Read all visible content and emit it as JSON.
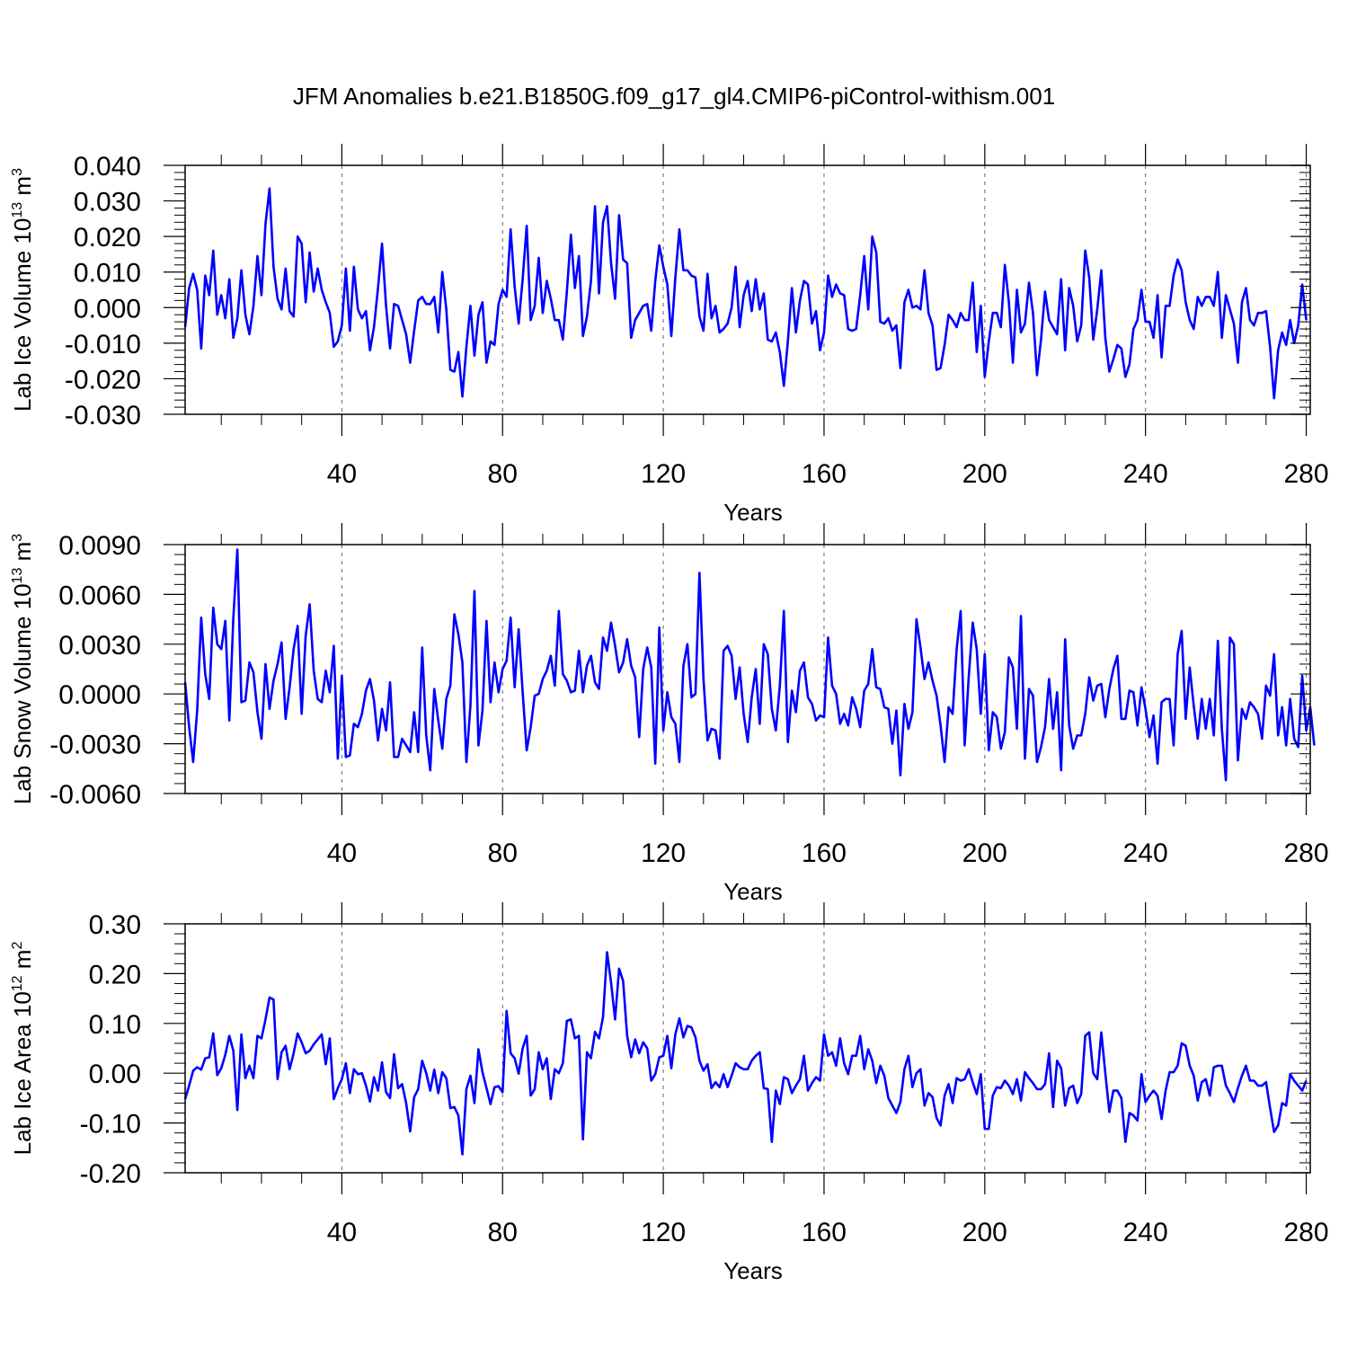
{
  "figure_title": "JFM Anomalies b.e21.B1850G.f09_g17_gl4.CMIP6-piControl-withism.001",
  "colors": {
    "series": "#0000ff",
    "axes": "#000000",
    "gridline": "#000000"
  },
  "chart_data": [
    {
      "type": "line",
      "title": "",
      "ylabel": {
        "main": "Lab Ice Volume 10",
        "sup": "13",
        "unit": " m",
        "unit_sup": "3"
      },
      "xlabel": "Years",
      "xlim": [
        1,
        281
      ],
      "ylim": [
        -0.03,
        0.04
      ],
      "xticks": [
        40,
        80,
        120,
        160,
        200,
        240,
        280
      ],
      "yticks": [
        -0.03,
        -0.02,
        -0.01,
        0.0,
        0.01,
        0.02,
        0.03,
        0.04
      ],
      "yticklabels": [
        "-0.030",
        "-0.020",
        "-0.010",
        "0.000",
        "0.010",
        "0.020",
        "0.030",
        "0.040"
      ],
      "grid": "vertical-dashed",
      "x_start": 1,
      "series": [
        {
          "name": "Lab Ice Volume",
          "values": [
            -0.0055,
            0.0055,
            0.0095,
            0.005,
            -0.0115,
            0.009,
            0.0035,
            0.016,
            -0.002,
            0.0035,
            -0.003,
            0.008,
            -0.0085,
            -0.003,
            0.0105,
            -0.002,
            -0.0075,
            0.0005,
            0.0145,
            0.0035,
            0.0235,
            0.0335,
            0.0115,
            0.0025,
            -0.0005,
            0.011,
            -0.001,
            -0.0025,
            0.02,
            0.018,
            0.0015,
            0.0155,
            0.0045,
            0.011,
            0.005,
            0.0015,
            -0.0015,
            -0.011,
            -0.0095,
            -0.005,
            0.011,
            -0.0065,
            0.0115,
            -0.0005,
            -0.003,
            -0.001,
            -0.012,
            -0.0055,
            0.0055,
            0.018,
            0.0005,
            -0.0115,
            0.001,
            0.0005,
            -0.0035,
            -0.0075,
            -0.0155,
            -0.0065,
            0.002,
            0.003,
            0.001,
            0.001,
            0.003,
            -0.007,
            0.01,
            -0.0005,
            -0.0175,
            -0.018,
            -0.0125,
            -0.025,
            -0.011,
            0.0005,
            -0.0135,
            -0.002,
            0.0015,
            -0.0155,
            -0.0095,
            -0.0105,
            0.001,
            0.005,
            0.003,
            0.022,
            0.006,
            -0.0045,
            0.008,
            0.023,
            -0.0035,
            0.0005,
            0.014,
            -0.0015,
            0.0075,
            0.0025,
            -0.0035,
            -0.0035,
            -0.009,
            0.0045,
            0.0205,
            0.0055,
            0.0145,
            -0.008,
            -0.0025,
            0.0075,
            0.0285,
            0.004,
            0.024,
            0.0285,
            0.0125,
            0.0025,
            0.026,
            0.0135,
            0.0125,
            -0.0085,
            -0.0035,
            -0.0015,
            0.0005,
            0.001,
            -0.0065,
            0.0075,
            0.0175,
            0.0115,
            0.0065,
            -0.008,
            0.0085,
            0.022,
            0.0105,
            0.0105,
            0.009,
            0.0085,
            -0.0025,
            -0.0065,
            0.0095,
            -0.003,
            0.0005,
            -0.007,
            -0.006,
            -0.0045,
            0.0,
            0.0115,
            -0.0055,
            0.0035,
            0.0075,
            -0.001,
            0.008,
            -0.0005,
            0.004,
            -0.009,
            -0.0095,
            -0.007,
            -0.0125,
            -0.022,
            -0.0095,
            0.0055,
            -0.007,
            0.002,
            0.0075,
            0.0065,
            -0.0045,
            -0.001,
            -0.012,
            -0.007,
            0.009,
            0.003,
            0.0065,
            0.004,
            0.0035,
            -0.006,
            -0.0065,
            -0.006,
            0.0035,
            0.0145,
            -0.0005,
            0.02,
            0.0155,
            -0.004,
            -0.0045,
            -0.003,
            -0.0065,
            -0.005,
            -0.017,
            0.0015,
            0.005,
            0.0,
            0.0005,
            -0.0005,
            0.0105,
            -0.0015,
            -0.005,
            -0.0175,
            -0.017,
            -0.0105,
            -0.002,
            -0.0035,
            -0.0055,
            -0.0015,
            -0.0035,
            -0.0035,
            0.007,
            -0.0125,
            0.0005,
            -0.0195,
            -0.0095,
            -0.0015,
            -0.0015,
            -0.0055,
            0.012,
            0.0015,
            -0.0155,
            0.005,
            -0.007,
            -0.0045,
            0.007,
            -0.0015,
            -0.019,
            -0.009,
            0.0045,
            -0.0035,
            -0.0055,
            -0.0075,
            0.008,
            -0.012,
            0.0055,
            0.0005,
            -0.0095,
            -0.005,
            0.016,
            0.0085,
            -0.009,
            -0.0005,
            0.0105,
            -0.0085,
            -0.018,
            -0.0145,
            -0.0105,
            -0.0115,
            -0.0195,
            -0.016,
            -0.006,
            -0.0035,
            0.005,
            -0.004,
            -0.004,
            -0.0085,
            0.0035,
            -0.014,
            0.0005,
            0.0005,
            0.009,
            0.0135,
            0.0105,
            0.0015,
            -0.0035,
            -0.006,
            0.003,
            0.0005,
            0.003,
            0.003,
            0.0005,
            0.01,
            -0.0085,
            0.0035,
            -0.0005,
            -0.0045,
            -0.0155,
            0.0015,
            0.0055,
            -0.0035,
            -0.005,
            -0.0015,
            -0.0015,
            -0.001,
            -0.011,
            -0.0255,
            -0.012,
            -0.007,
            -0.0105,
            -0.0035,
            -0.01,
            -0.005,
            0.0065,
            -0.0035
          ]
        }
      ]
    },
    {
      "type": "line",
      "title": "",
      "ylabel": {
        "main": "Lab Snow Volume 10",
        "sup": "13",
        "unit": " m",
        "unit_sup": "3"
      },
      "xlabel": "Years",
      "xlim": [
        1,
        281
      ],
      "ylim": [
        -0.006,
        0.009
      ],
      "xticks": [
        40,
        80,
        120,
        160,
        200,
        240,
        280
      ],
      "yticks": [
        -0.006,
        -0.003,
        0.0,
        0.003,
        0.006,
        0.009
      ],
      "yticklabels": [
        "-0.0060",
        "-0.0030",
        "0.0000",
        "0.0030",
        "0.0060",
        "0.0090"
      ],
      "grid": "vertical-dashed",
      "x_start": 1,
      "series": [
        {
          "name": "Lab Snow Volume",
          "values": [
            0.0007,
            -0.002,
            -0.0041,
            -0.001,
            0.0046,
            0.0012,
            -0.0003,
            0.0052,
            0.003,
            0.0027,
            0.0044,
            -0.0016,
            0.0046,
            0.0087,
            -0.0005,
            -0.0004,
            0.0019,
            0.0013,
            -0.0011,
            -0.0027,
            0.0018,
            -0.0009,
            0.0008,
            0.0018,
            0.0031,
            -0.0015,
            0.0004,
            0.0027,
            0.0041,
            -0.0012,
            0.0035,
            0.0054,
            0.0014,
            -0.0003,
            -0.0005,
            0.0014,
            0.0001,
            0.0029,
            -0.0039,
            0.0011,
            -0.0038,
            -0.0037,
            -0.0018,
            -0.002,
            -0.0012,
            0.0002,
            0.0009,
            -0.0004,
            -0.0028,
            -0.0009,
            -0.0022,
            0.0007,
            -0.0038,
            -0.0038,
            -0.0027,
            -0.0031,
            -0.0035,
            -0.0011,
            -0.0035,
            0.0028,
            -0.0025,
            -0.0046,
            0.0003,
            -0.0016,
            -0.0033,
            -0.0003,
            0.0005,
            0.0048,
            0.0036,
            0.0019,
            -0.0041,
            -0.0007,
            0.0062,
            -0.0031,
            -0.001,
            0.0044,
            -0.0005,
            0.0019,
            0.0001,
            0.0015,
            0.002,
            0.0046,
            0.0004,
            0.0039,
            0.0001,
            -0.0034,
            -0.002,
            -0.0001,
            0.0,
            0.0009,
            0.0014,
            0.0023,
            0.0005,
            0.005,
            0.0012,
            0.0008,
            0.0001,
            0.0002,
            0.0026,
            0.0001,
            0.0017,
            0.0023,
            0.0007,
            0.0003,
            0.0034,
            0.0026,
            0.0043,
            0.0029,
            0.0013,
            0.0019,
            0.0033,
            0.0017,
            0.001,
            -0.0026,
            0.0015,
            0.0028,
            0.0016,
            -0.0042,
            0.004,
            -0.0022,
            0.0001,
            -0.0014,
            -0.0018,
            -0.0041,
            0.0017,
            0.003,
            -0.0002,
            0.0,
            0.0073,
            0.0009,
            -0.0028,
            -0.0021,
            -0.0022,
            -0.0039,
            0.0026,
            0.0029,
            0.0023,
            -0.0003,
            0.0016,
            -0.0012,
            -0.0029,
            -0.0002,
            0.0015,
            -0.0018,
            0.003,
            0.0024,
            -0.0009,
            -0.0022,
            0.0005,
            0.005,
            -0.0029,
            0.0002,
            -0.0011,
            0.0014,
            0.0019,
            -0.0002,
            -0.0006,
            -0.0016,
            -0.0013,
            -0.0014,
            0.0034,
            0.0005,
            0.0,
            -0.0018,
            -0.0012,
            -0.0019,
            -0.0002,
            -0.0009,
            -0.002,
            0.0002,
            0.0006,
            0.0027,
            0.0004,
            0.0003,
            -0.0008,
            -0.0009,
            -0.003,
            -0.001,
            -0.0049,
            -0.0006,
            -0.0021,
            -0.0011,
            0.0045,
            0.0028,
            0.0009,
            0.0019,
            0.0008,
            -0.0001,
            -0.0019,
            -0.0041,
            -0.0008,
            -0.0012,
            0.0027,
            0.005,
            -0.0031,
            0.001,
            0.0043,
            0.0027,
            -0.0012,
            0.0024,
            -0.0034,
            -0.0011,
            -0.0014,
            -0.0033,
            -0.0023,
            0.0022,
            0.0016,
            -0.0021,
            0.0047,
            -0.0039,
            0.0003,
            -0.0001,
            -0.0041,
            -0.0032,
            -0.002,
            0.0009,
            -0.0021,
            0.0001,
            -0.0046,
            0.0033,
            -0.0019,
            -0.0033,
            -0.0025,
            -0.0025,
            -0.0012,
            0.001,
            -0.0004,
            0.0005,
            0.0006,
            -0.0014,
            0.0003,
            0.0015,
            0.0023,
            -0.0015,
            -0.0015,
            0.0002,
            0.0001,
            -0.0019,
            0.0004,
            -0.0009,
            -0.0026,
            -0.0013,
            -0.0042,
            -0.0005,
            -0.0003,
            -0.0003,
            -0.0031,
            0.0024,
            0.0038,
            -0.0015,
            0.0016,
            -0.0007,
            -0.0027,
            -0.0003,
            -0.0021,
            -0.0003,
            -0.0025,
            0.0032,
            -0.0021,
            -0.0052,
            0.0034,
            0.003,
            -0.004,
            -0.0009,
            -0.0015,
            -0.0005,
            -0.0008,
            -0.0012,
            -0.0027,
            0.0005,
            -0.0001,
            0.0024,
            -0.0025,
            -0.0008,
            -0.0031,
            -0.0003,
            -0.0027,
            -0.0032,
            0.0011,
            -0.0022,
            -0.0008,
            -0.0031
          ]
        }
      ]
    },
    {
      "type": "line",
      "title": "",
      "ylabel": {
        "main": "Lab Ice Area 10",
        "sup": "12",
        "unit": " m",
        "unit_sup": "2"
      },
      "xlabel": "Years",
      "xlim": [
        1,
        281
      ],
      "ylim": [
        -0.2,
        0.3
      ],
      "xticks": [
        40,
        80,
        120,
        160,
        200,
        240,
        280
      ],
      "yticks": [
        -0.2,
        -0.1,
        0.0,
        0.1,
        0.2,
        0.3
      ],
      "yticklabels": [
        "-0.20",
        "-0.10",
        "0.00",
        "0.10",
        "0.20",
        "0.30"
      ],
      "grid": "vertical-dashed",
      "x_start": 1,
      "series": [
        {
          "name": "Lab Ice Area",
          "values": [
            -0.052,
            -0.025,
            0.005,
            0.012,
            0.007,
            0.03,
            0.032,
            0.08,
            -0.004,
            0.01,
            0.037,
            0.075,
            0.045,
            -0.074,
            0.078,
            -0.01,
            0.015,
            -0.01,
            0.075,
            0.07,
            0.108,
            0.152,
            0.148,
            -0.012,
            0.042,
            0.055,
            0.008,
            0.04,
            0.08,
            0.062,
            0.04,
            0.045,
            0.058,
            0.068,
            0.078,
            0.018,
            0.07,
            -0.052,
            -0.03,
            -0.012,
            0.02,
            -0.04,
            0.008,
            -0.002,
            0.0,
            -0.025,
            -0.057,
            -0.008,
            -0.035,
            0.022,
            -0.038,
            -0.05,
            0.038,
            -0.03,
            -0.022,
            -0.06,
            -0.117,
            -0.048,
            -0.032,
            0.025,
            0.0,
            -0.035,
            0.007,
            -0.04,
            0.002,
            -0.01,
            -0.07,
            -0.068,
            -0.085,
            -0.163,
            -0.032,
            -0.005,
            -0.06,
            0.048,
            0.002,
            -0.03,
            -0.062,
            -0.028,
            -0.026,
            -0.038,
            0.125,
            0.04,
            0.03,
            -0.001,
            0.05,
            0.075,
            -0.045,
            -0.032,
            0.042,
            0.008,
            0.03,
            -0.052,
            0.008,
            0.0,
            0.02,
            0.105,
            0.108,
            0.07,
            0.075,
            -0.133,
            0.042,
            0.03,
            0.083,
            0.07,
            0.113,
            0.243,
            0.182,
            0.108,
            0.21,
            0.185,
            0.075,
            0.032,
            0.068,
            0.04,
            0.062,
            0.05,
            -0.015,
            -0.002,
            0.032,
            0.035,
            0.075,
            0.01,
            0.078,
            0.11,
            0.072,
            0.095,
            0.092,
            0.072,
            0.025,
            0.005,
            0.018,
            -0.03,
            -0.018,
            -0.028,
            -0.002,
            -0.028,
            -0.005,
            0.02,
            0.012,
            0.008,
            0.008,
            0.025,
            0.035,
            0.042,
            -0.03,
            -0.032,
            -0.138,
            -0.035,
            -0.062,
            -0.008,
            -0.012,
            -0.04,
            -0.025,
            -0.012,
            0.035,
            -0.035,
            -0.02,
            -0.008,
            -0.015,
            0.078,
            0.035,
            0.042,
            0.015,
            0.07,
            0.02,
            -0.002,
            0.035,
            0.035,
            0.075,
            0.008,
            0.048,
            0.025,
            -0.02,
            0.015,
            -0.005,
            -0.05,
            -0.065,
            -0.08,
            -0.058,
            0.008,
            0.035,
            -0.028,
            0.0,
            0.008,
            -0.065,
            -0.04,
            -0.048,
            -0.09,
            -0.105,
            -0.045,
            -0.022,
            -0.06,
            -0.01,
            -0.015,
            -0.012,
            0.008,
            -0.018,
            -0.042,
            -0.002,
            -0.112,
            -0.112,
            -0.045,
            -0.028,
            -0.03,
            -0.015,
            -0.025,
            -0.042,
            -0.012,
            -0.055,
            0.002,
            -0.01,
            -0.02,
            -0.032,
            -0.032,
            -0.022,
            0.04,
            -0.068,
            0.025,
            0.01,
            -0.065,
            -0.03,
            -0.025,
            -0.06,
            -0.042,
            0.075,
            0.082,
            0.0,
            -0.012,
            0.082,
            0.0,
            -0.078,
            -0.035,
            -0.035,
            -0.05,
            -0.138,
            -0.08,
            -0.085,
            -0.095,
            -0.002,
            -0.058,
            -0.045,
            -0.035,
            -0.045,
            -0.092,
            -0.035,
            0.002,
            0.002,
            0.015,
            0.06,
            0.055,
            0.015,
            -0.005,
            -0.055,
            -0.018,
            -0.012,
            -0.045,
            0.012,
            0.015,
            0.015,
            -0.025,
            -0.04,
            -0.058,
            -0.03,
            -0.005,
            0.015,
            -0.015,
            -0.015,
            -0.025,
            -0.025,
            -0.018,
            -0.07,
            -0.118,
            -0.105,
            -0.06,
            -0.065,
            -0.002,
            -0.015,
            -0.025,
            -0.035,
            -0.015
          ]
        }
      ]
    }
  ]
}
